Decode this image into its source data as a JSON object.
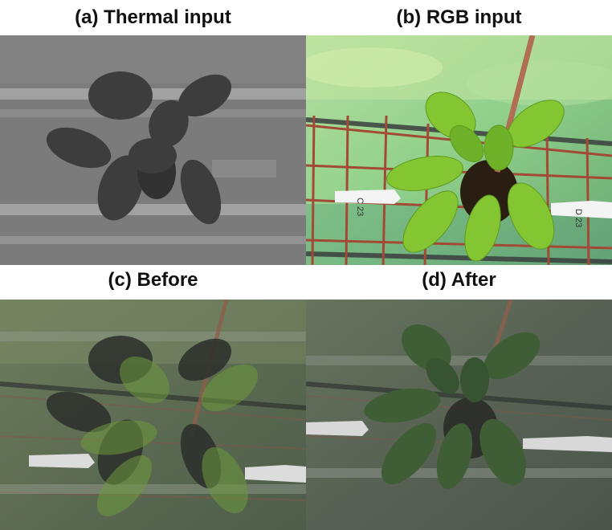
{
  "figure": {
    "captions": {
      "a": "(a) Thermal input",
      "b": "(b) RGB input",
      "c": "(c) Before",
      "d": "(d) After"
    },
    "tags": {
      "c": "C 23",
      "d": "D 23"
    },
    "colors": {
      "background": "#ffffff",
      "thermal_bg": "#7d7d7d",
      "thermal_leaf": "#3c3c3c",
      "rgb_wall": "#9fc98a",
      "rgb_leaf": "#7fbf2e",
      "rgb_leaf_dark": "#4f8f1c",
      "wire": "#a04a38",
      "stake": "#b5705a",
      "overlay_before": "#5a6d4c",
      "overlay_after": "#555f52"
    }
  }
}
